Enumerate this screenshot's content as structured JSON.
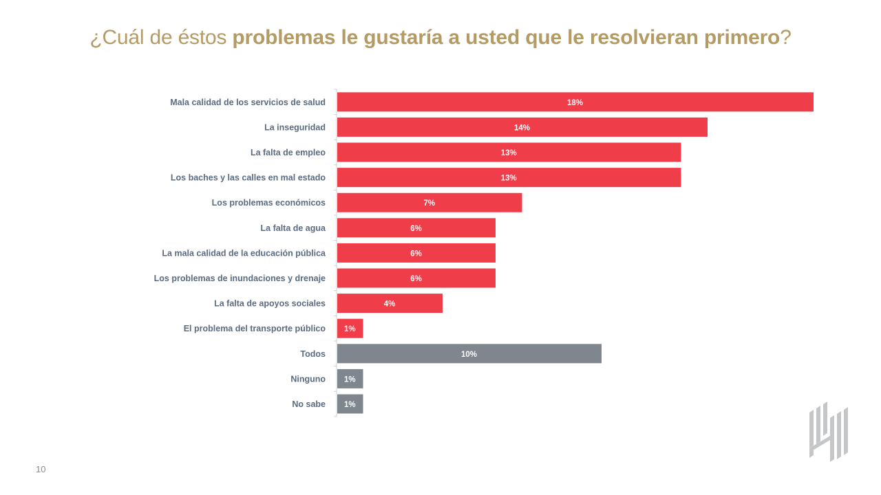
{
  "slide": {
    "title_parts": [
      {
        "text": "¿Cuál de éstos ",
        "bold": false
      },
      {
        "text": "problemas le gustaría a usted que le resolvieran primero",
        "bold": true
      },
      {
        "text": "?",
        "bold": false
      }
    ],
    "page_number": "10",
    "logo": "brand-logo-icon"
  },
  "colors": {
    "title": "#b39b63",
    "problem_bar": "#ef3d4a",
    "other_bar": "#7f868d",
    "label": "#5a6b82",
    "axis": "#d0d0d0"
  },
  "chart_data": {
    "type": "bar",
    "orientation": "horizontal",
    "title": "¿Cuál de éstos problemas le gustaría a usted que le resolvieran primero?",
    "xlabel": "",
    "ylabel": "",
    "unit": "%",
    "xlim": [
      0,
      18
    ],
    "grid": false,
    "legend": "none",
    "categories": [
      "Mala calidad de los servicios de salud",
      "La inseguridad",
      "La falta de empleo",
      "Los baches y las calles en mal estado",
      "Los problemas económicos",
      "La falta de agua",
      "La mala calidad de la educación pública",
      "Los problemas de inundaciones y drenaje",
      "La falta de apoyos sociales",
      "El problema del transporte público",
      "Todos",
      "Ninguno",
      "No sabe"
    ],
    "values": [
      18,
      14,
      13,
      13,
      7,
      6,
      6,
      6,
      4,
      1,
      10,
      1,
      1
    ],
    "value_labels": [
      "18%",
      "14%",
      "13%",
      "13%",
      "7%",
      "6%",
      "6%",
      "6%",
      "4%",
      "1%",
      "10%",
      "1%",
      "1%"
    ],
    "groups": [
      "problem",
      "problem",
      "problem",
      "problem",
      "problem",
      "problem",
      "problem",
      "problem",
      "problem",
      "problem",
      "other",
      "other",
      "other"
    ]
  }
}
